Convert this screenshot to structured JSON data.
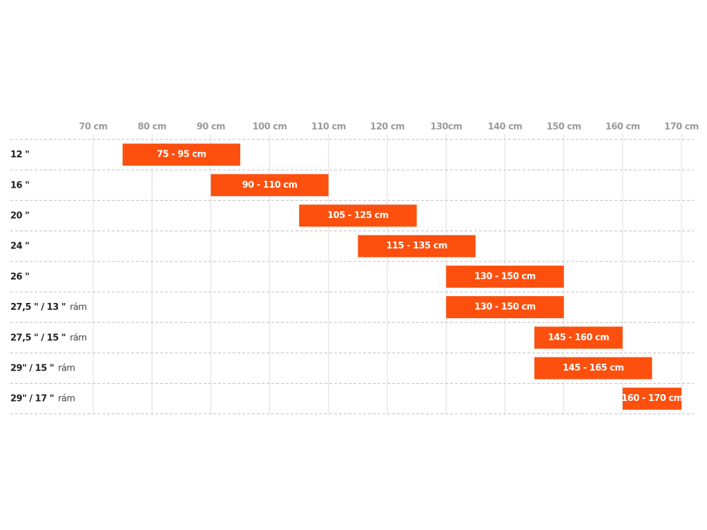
{
  "chart_data": {
    "type": "range-bar",
    "color": "#fd4f0e",
    "categories": [
      {
        "label": "12 \""
      },
      {
        "label": "16 \""
      },
      {
        "label": "20 \""
      },
      {
        "label": "24 \""
      },
      {
        "label": "26 \""
      },
      {
        "label": "27,5 \" / 13 \"",
        "suffix": "rám"
      },
      {
        "label": "27,5 \" / 15 \"",
        "suffix": "rám"
      },
      {
        "label": "29\" / 15 \"",
        "suffix": "rám"
      },
      {
        "label": "29\" / 17 \"",
        "suffix": "rám"
      }
    ],
    "values": [
      [
        75,
        95
      ],
      [
        90,
        110
      ],
      [
        105,
        125
      ],
      [
        115,
        135
      ],
      [
        130,
        150
      ],
      [
        130,
        150
      ],
      [
        145,
        160
      ],
      [
        145,
        165
      ],
      [
        160,
        170
      ]
    ],
    "value_labels": [
      "75 - 95 cm",
      "90 - 110 cm",
      "105 - 125 cm",
      "115 - 135 cm",
      "130 - 150 cm",
      "130 - 150 cm",
      "145 - 160 cm",
      "145 - 165 cm",
      "160 - 170 cm"
    ],
    "xlim": [
      70,
      170
    ],
    "xticks": [
      {
        "value": 70,
        "label": "70 cm"
      },
      {
        "value": 80,
        "label": "80 cm"
      },
      {
        "value": 90,
        "label": "90 cm"
      },
      {
        "value": 100,
        "label": "100 cm"
      },
      {
        "value": 110,
        "label": "110 cm"
      },
      {
        "value": 120,
        "label": "120 cm"
      },
      {
        "value": 130,
        "label": "130cm"
      },
      {
        "value": 140,
        "label": "140 cm"
      },
      {
        "value": 150,
        "label": "150 cm"
      },
      {
        "value": 160,
        "label": "160 cm"
      },
      {
        "value": 170,
        "label": "170 cm"
      }
    ],
    "grid": true
  }
}
